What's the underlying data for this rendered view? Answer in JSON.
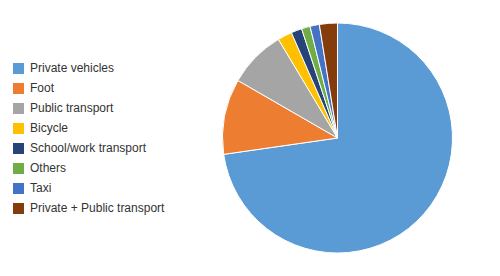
{
  "chart_data": {
    "type": "pie",
    "categories": [
      "Private vehicles",
      "Foot",
      "Public transport",
      "Bicycle",
      "School/work transport",
      "Others",
      "Taxi",
      "Private + Public transport"
    ],
    "values": [
      72.0,
      10.5,
      8.0,
      2.0,
      1.5,
      1.2,
      1.3,
      2.5
    ],
    "colors": [
      "#5B9BD5",
      "#ED7D31",
      "#A5A5A5",
      "#FFC000",
      "#264478",
      "#70AD47",
      "#4472C4",
      "#843C0C"
    ],
    "legend": "left"
  }
}
